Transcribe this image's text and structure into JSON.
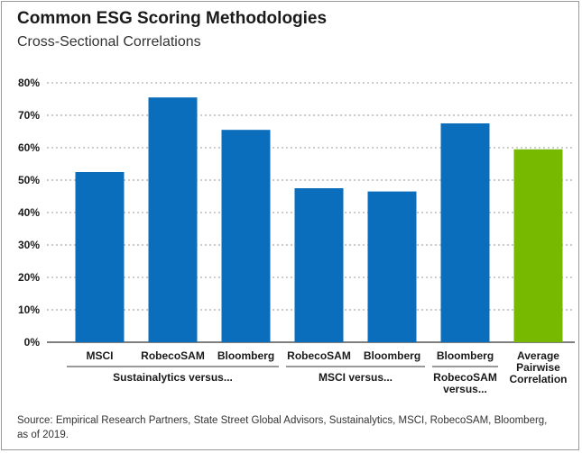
{
  "title": "Common ESG Scoring Methodologies",
  "subtitle": "Cross-Sectional Correlations",
  "source": "Source: Empirical Research Partners, State Street Global Advisors, Sustainalytics, MSCI, RobecoSAM, Bloomberg, as of 2019.",
  "colors": {
    "bar": "#0a6ebd",
    "highlight": "#76b900",
    "grid": "#9a9a9a",
    "axis": "#333333"
  },
  "chart_data": {
    "type": "bar",
    "ylim": [
      0,
      80
    ],
    "yticks": [
      "0%",
      "10%",
      "20%",
      "30%",
      "40%",
      "50%",
      "60%",
      "70%",
      "80%"
    ],
    "grid": true,
    "categories": [
      "MSCI",
      "RobecoSAM",
      "Bloomberg",
      "RobecoSAM",
      "Bloomberg",
      "Bloomberg",
      "Average Pairwise Correlation"
    ],
    "values": [
      52.5,
      75.5,
      65.5,
      47.5,
      46.5,
      67.5,
      59.5
    ],
    "highlight_index": 6,
    "groups": [
      {
        "label": "Sustainalytics versus...",
        "start": 0,
        "end": 2
      },
      {
        "label": "MSCI versus...",
        "start": 3,
        "end": 4
      },
      {
        "label": "RobecoSAM versus...",
        "start": 5,
        "end": 5
      }
    ]
  }
}
